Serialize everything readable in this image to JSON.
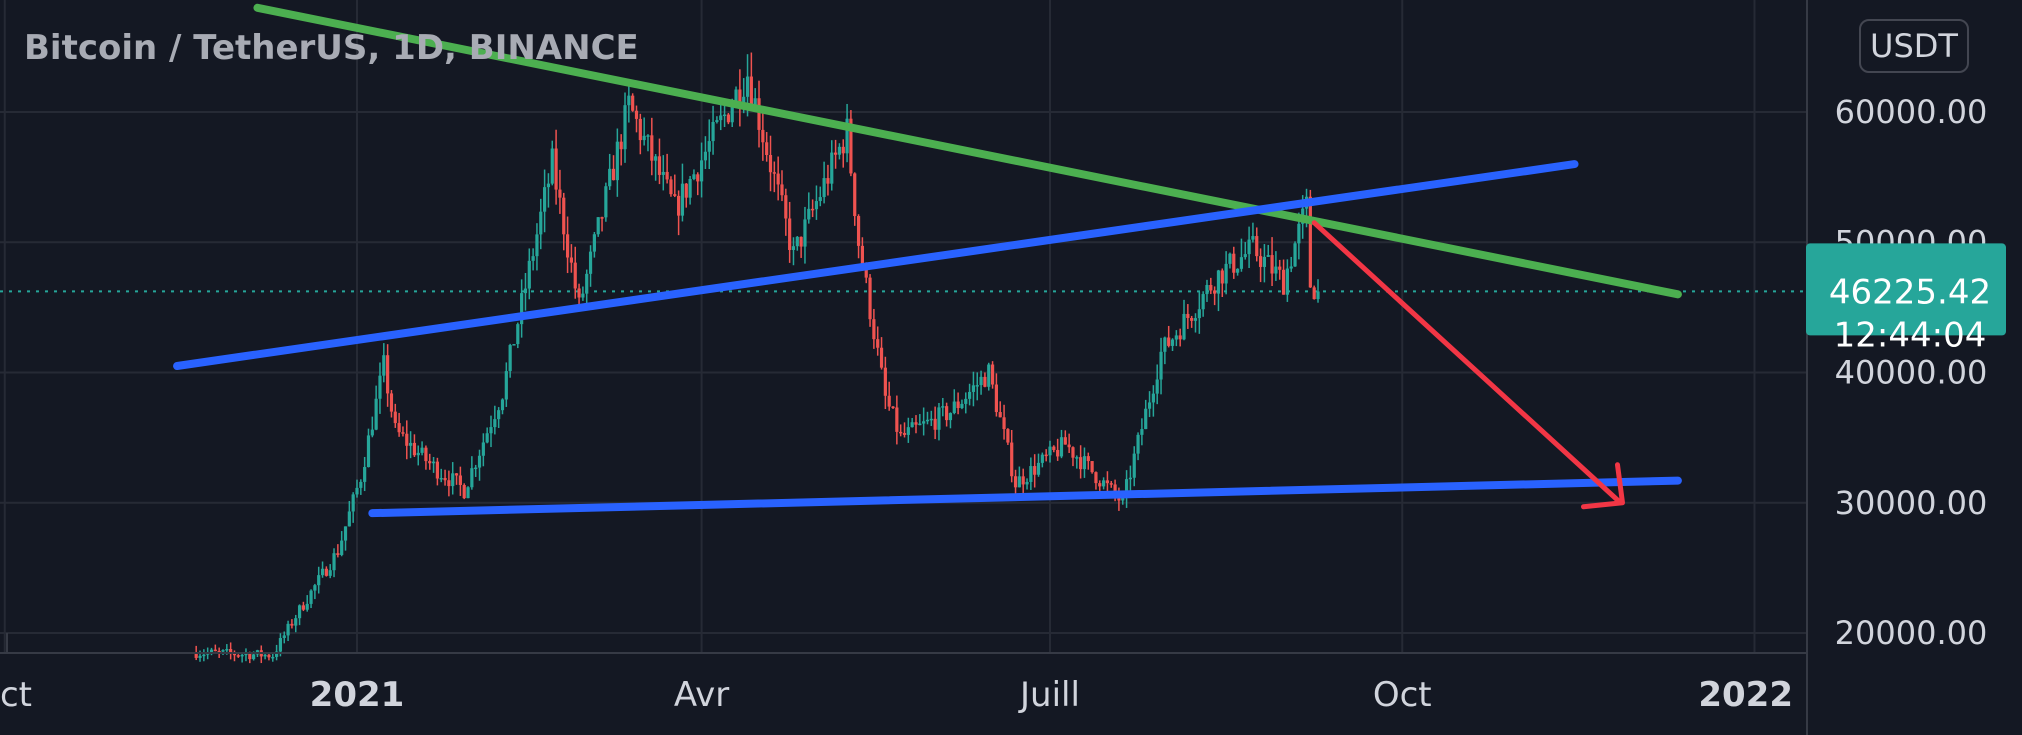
{
  "chart_data": {
    "type": "candlestick",
    "title": "Bitcoin / TetherUS, 1D, BINANCE",
    "currency": "USDT",
    "ylim": [
      19000,
      68000
    ],
    "y_ticks": [
      "60000.00",
      "50000.00",
      "40000.00",
      "30000.00",
      "20000.00"
    ],
    "y_tick_values": [
      60000,
      50000,
      40000,
      30000,
      20000
    ],
    "x_ticks": [
      {
        "label": "Oct",
        "date": "2020-10-01",
        "bold": false
      },
      {
        "label": "2021",
        "date": "2021-01-01",
        "bold": true
      },
      {
        "label": "Avr",
        "date": "2021-04-01",
        "bold": false
      },
      {
        "label": "Juill",
        "date": "2021-07-01",
        "bold": false
      },
      {
        "label": "Oct",
        "date": "2021-10-01",
        "bold": false
      },
      {
        "label": "2022",
        "date": "2022-01-01",
        "bold": true
      }
    ],
    "last_price": "46225.42",
    "last_price_value": 46225.42,
    "countdown": "12:44:04",
    "colors": {
      "background": "#141823",
      "grid": "#262a35",
      "up": "#26a69a",
      "down": "#ef5350",
      "green_line": "#4caf50",
      "blue_line": "#2962ff",
      "arrow": "#f23645",
      "price_line": "#26a69a"
    },
    "price_path": [
      {
        "date": "2020-11-20",
        "close": 18500
      },
      {
        "date": "2020-12-10",
        "close": 18300
      },
      {
        "date": "2020-12-16",
        "close": 21300
      },
      {
        "date": "2020-12-27",
        "close": 26300
      },
      {
        "date": "2021-01-02",
        "close": 32000
      },
      {
        "date": "2021-01-08",
        "close": 40500
      },
      {
        "date": "2021-01-11",
        "close": 35500
      },
      {
        "date": "2021-01-20",
        "close": 33000
      },
      {
        "date": "2021-01-29",
        "close": 31000
      },
      {
        "date": "2021-02-08",
        "close": 38500
      },
      {
        "date": "2021-02-21",
        "close": 56000
      },
      {
        "date": "2021-02-28",
        "close": 45000
      },
      {
        "date": "2021-03-13",
        "close": 60500
      },
      {
        "date": "2021-03-25",
        "close": 52500
      },
      {
        "date": "2021-04-13",
        "close": 63000
      },
      {
        "date": "2021-04-25",
        "close": 49000
      },
      {
        "date": "2021-05-09",
        "close": 58500
      },
      {
        "date": "2021-05-12",
        "close": 50000
      },
      {
        "date": "2021-05-19",
        "close": 38000
      },
      {
        "date": "2021-05-23",
        "close": 35000
      },
      {
        "date": "2021-06-05",
        "close": 37000
      },
      {
        "date": "2021-06-15",
        "close": 40000
      },
      {
        "date": "2021-06-22",
        "close": 31500
      },
      {
        "date": "2021-07-05",
        "close": 34500
      },
      {
        "date": "2021-07-20",
        "close": 30000
      },
      {
        "date": "2021-07-30",
        "close": 41500
      },
      {
        "date": "2021-08-14",
        "close": 47500
      },
      {
        "date": "2021-08-23",
        "close": 49500
      },
      {
        "date": "2021-08-31",
        "close": 47000
      },
      {
        "date": "2021-09-06",
        "close": 52700
      },
      {
        "date": "2021-09-07",
        "close": 46800
      },
      {
        "date": "2021-09-09",
        "close": 46225.42
      }
    ],
    "drawings": [
      {
        "name": "green-resistance-line",
        "color": "#4caf50",
        "start": {
          "date": "2020-12-06",
          "price": 68000
        },
        "end": {
          "date": "2021-12-12",
          "price": 46000
        }
      },
      {
        "name": "blue-upper-line",
        "color": "#2962ff",
        "start": {
          "date": "2020-11-15",
          "price": 40500
        },
        "end": {
          "date": "2021-11-15",
          "price": 56000
        }
      },
      {
        "name": "blue-support-line",
        "color": "#2962ff",
        "start": {
          "date": "2021-01-05",
          "price": 29200
        },
        "end": {
          "date": "2021-12-12",
          "price": 31700
        }
      },
      {
        "name": "red-arrow",
        "color": "#f23645",
        "start": {
          "date": "2021-09-08",
          "price": 51500
        },
        "end": {
          "date": "2021-11-27",
          "price": 30000
        }
      }
    ]
  }
}
